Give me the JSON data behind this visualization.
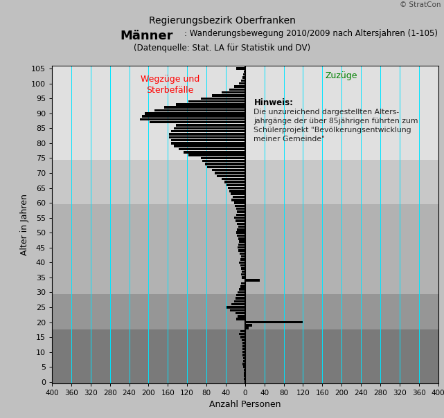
{
  "title_line1": "Regierungsbezirk Oberfranken",
  "title_line2_bold": "Männer",
  "title_line2_rest": ": Wanderungsbewegung 2010/2009 nach Altersjahren (1-105)",
  "title_line3": "(Datenquelle: Stat. LA für Statistik und DV)",
  "xlabel": "Anzahl Personen",
  "ylabel": "Alter in Jahren",
  "copyright": "© StratCon",
  "left_label": "Wegzüge und\nSterbefälle",
  "right_label": "Zuzüge",
  "hint_title": "Hinweis:",
  "hint_text": "Die unzureichend dargestellten Alters-\njahrgänge der über 85jährigen führten zum\nSchülerprojekt \"Bevölkerungsentwicklung\nmeiner Gemeinde\"",
  "xlim_left": -400,
  "xlim_right": 400,
  "ylim_bottom": -0.5,
  "ylim_top": 106,
  "xticks": [
    -400,
    -360,
    -320,
    -280,
    -240,
    -200,
    -160,
    -120,
    -80,
    -40,
    0,
    40,
    80,
    120,
    160,
    200,
    240,
    280,
    320,
    360,
    400
  ],
  "xticklabels": [
    "400",
    "360",
    "320",
    "280",
    "240",
    "200",
    "160",
    "120",
    "80",
    "40",
    "0",
    "40",
    "80",
    "120",
    "160",
    "200",
    "240",
    "280",
    "320",
    "360",
    "400"
  ],
  "yticks": [
    0,
    5,
    10,
    15,
    20,
    25,
    30,
    35,
    40,
    45,
    50,
    55,
    60,
    65,
    70,
    75,
    80,
    85,
    90,
    95,
    100,
    105
  ],
  "fig_bg": "#c0c0c0",
  "bar_color": "#000000",
  "grid_color": "#00e5ff",
  "band_defs": [
    [
      0,
      18,
      "#7a7a7a"
    ],
    [
      18,
      30,
      "#969696"
    ],
    [
      30,
      60,
      "#b2b2b2"
    ],
    [
      60,
      75,
      "#c8c8c8"
    ],
    [
      75,
      106,
      "#e0e0e0"
    ]
  ],
  "values": {
    "1": -3,
    "2": -2,
    "3": -2,
    "4": -3,
    "5": -4,
    "6": -5,
    "7": -4,
    "8": -4,
    "9": -5,
    "10": -6,
    "11": -5,
    "12": -5,
    "13": -6,
    "14": -7,
    "15": -10,
    "16": -12,
    "17": -10,
    "18": 8,
    "19": 15,
    "20": 120,
    "21": -18,
    "22": -16,
    "23": -20,
    "24": -32,
    "25": -38,
    "26": -28,
    "27": -22,
    "28": -20,
    "29": -18,
    "30": -15,
    "31": -12,
    "32": -10,
    "33": -8,
    "34": 30,
    "35": -7,
    "36": -8,
    "37": -7,
    "38": -9,
    "39": -10,
    "40": -12,
    "41": -10,
    "42": -9,
    "43": -11,
    "44": -14,
    "45": -16,
    "46": -14,
    "47": -12,
    "48": -14,
    "49": -17,
    "50": -19,
    "51": -17,
    "52": -14,
    "53": -17,
    "54": -20,
    "55": -23,
    "56": -19,
    "57": -17,
    "58": -19,
    "59": -21,
    "60": -23,
    "61": -28,
    "62": -25,
    "63": -30,
    "64": -33,
    "65": -36,
    "66": -38,
    "67": -43,
    "68": -48,
    "69": -58,
    "70": -63,
    "71": -68,
    "72": -78,
    "73": -83,
    "74": -88,
    "75": -92,
    "76": -118,
    "77": -128,
    "78": -138,
    "79": -148,
    "80": -153,
    "81": -153,
    "82": -158,
    "83": -158,
    "84": -153,
    "85": -148,
    "86": -143,
    "87": -198,
    "88": -218,
    "89": -213,
    "90": -208,
    "91": -188,
    "92": -168,
    "93": -143,
    "94": -118,
    "95": -92,
    "96": -68,
    "97": -48,
    "98": -33,
    "99": -23,
    "100": -13,
    "101": -9,
    "102": -6,
    "103": -4,
    "104": -2,
    "105": -18
  }
}
